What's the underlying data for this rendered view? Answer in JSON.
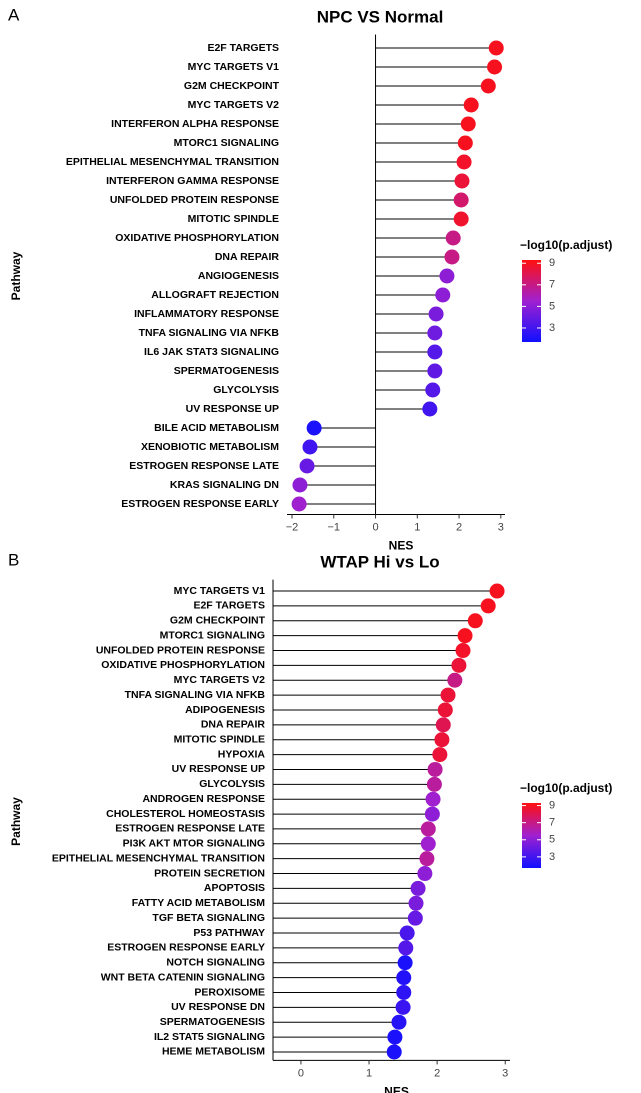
{
  "chart_data": [
    {
      "type": "lollipop",
      "panel": "A",
      "title": "NPC VS Normal",
      "x_label": "NES",
      "y_label": "Pathway",
      "categories": [
        "E2F TARGETS",
        "MYC TARGETS V1",
        "G2M CHECKPOINT",
        "MYC TARGETS V2",
        "INTERFERON ALPHA RESPONSE",
        "MTORC1 SIGNALING",
        "EPITHELIAL MESENCHYMAL TRANSITION",
        "INTERFERON GAMMA RESPONSE",
        "UNFOLDED PROTEIN RESPONSE",
        "MITOTIC SPINDLE",
        "OXIDATIVE PHOSPHORYLATION",
        "DNA REPAIR",
        "ANGIOGENESIS",
        "ALLOGRAFT REJECTION",
        "INFLAMMATORY RESPONSE",
        "TNFA SIGNALING VIA NFKB",
        "IL6 JAK STAT3 SIGNALING",
        "SPERMATOGENESIS",
        "GLYCOLYSIS",
        "UV RESPONSE UP",
        "BILE ACID METABOLISM",
        "XENOBIOTIC METABOLISM",
        "ESTROGEN RESPONSE LATE",
        "KRAS SIGNALING DN",
        "ESTROGEN RESPONSE EARLY"
      ],
      "values": [
        2.89,
        2.85,
        2.7,
        2.29,
        2.22,
        2.15,
        2.12,
        2.07,
        2.05,
        2.05,
        1.86,
        1.83,
        1.71,
        1.61,
        1.45,
        1.42,
        1.42,
        1.42,
        1.37,
        1.3,
        -1.47,
        -1.57,
        -1.64,
        -1.81,
        -1.83
      ],
      "color_values": [
        9,
        9,
        9,
        9,
        9,
        9,
        8.8,
        8.5,
        7.5,
        8.7,
        7,
        7,
        5,
        5,
        4.5,
        4.2,
        3.5,
        3.8,
        3.5,
        3,
        2,
        3,
        4,
        5,
        5.5
      ],
      "xlim": [
        -2.12,
        3.1
      ],
      "xticks": [
        {
          "value": -2,
          "label": "−2"
        },
        {
          "value": -1,
          "label": "−1"
        },
        0,
        1,
        2,
        3
      ],
      "colorbar": {
        "title": "−log10(p.adjust)",
        "lim": [
          1.7,
          9.3
        ],
        "ticks": [
          3,
          5,
          7,
          9
        ],
        "colors": [
          "#1010ff",
          "#a020d0",
          "#ff1010"
        ]
      }
    },
    {
      "type": "lollipop",
      "panel": "B",
      "title": "WTAP Hi vs Lo",
      "x_label": "NES",
      "y_label": "Pathway",
      "categories": [
        "MYC TARGETS V1",
        "E2F TARGETS",
        "G2M CHECKPOINT",
        "MTORC1 SIGNALING",
        "UNFOLDED PROTEIN RESPONSE",
        "OXIDATIVE PHOSPHORYLATION",
        "MYC TARGETS V2",
        "TNFA SIGNALING VIA NFKB",
        "ADIPOGENESIS",
        "DNA REPAIR",
        "MITOTIC SPINDLE",
        "HYPOXIA",
        "UV RESPONSE UP",
        "GLYCOLYSIS",
        "ANDROGEN RESPONSE",
        "CHOLESTEROL HOMEOSTASIS",
        "ESTROGEN RESPONSE LATE",
        "PI3K AKT MTOR SIGNALING",
        "EPITHELIAL MESENCHYMAL TRANSITION",
        "PROTEIN SECRETION",
        "APOPTOSIS",
        "FATTY ACID METABOLISM",
        "TGF BETA SIGNALING",
        "P53 PATHWAY",
        "ESTROGEN RESPONSE EARLY",
        "NOTCH SIGNALING",
        "WNT BETA CATENIN SIGNALING",
        "PEROXISOME",
        "UV RESPONSE DN",
        "SPERMATOGENESIS",
        "IL2 STAT5 SIGNALING",
        "HEME METABOLISM"
      ],
      "values": [
        2.88,
        2.75,
        2.56,
        2.41,
        2.38,
        2.32,
        2.26,
        2.16,
        2.12,
        2.09,
        2.07,
        2.04,
        1.97,
        1.96,
        1.94,
        1.93,
        1.87,
        1.87,
        1.85,
        1.82,
        1.72,
        1.69,
        1.68,
        1.56,
        1.54,
        1.53,
        1.51,
        1.51,
        1.5,
        1.44,
        1.38,
        1.37
      ],
      "color_values": [
        9,
        9,
        9,
        9,
        8.8,
        8.5,
        7,
        8.5,
        8.5,
        8,
        8.5,
        8.5,
        6.5,
        6.5,
        5.5,
        5,
        6.5,
        5.5,
        6.5,
        5,
        4.5,
        4.5,
        4,
        3.2,
        3.5,
        2,
        2.2,
        2.5,
        2.8,
        2.3,
        2,
        2
      ],
      "xlim": [
        -0.41,
        3.07
      ],
      "xticks": [
        0,
        1,
        2,
        3
      ],
      "colorbar": {
        "title": "−log10(p.adjust)",
        "lim": [
          1.7,
          9.3
        ],
        "ticks": [
          3,
          5,
          7,
          9
        ],
        "colors": [
          "#1010ff",
          "#a020d0",
          "#ff1010"
        ]
      }
    }
  ]
}
